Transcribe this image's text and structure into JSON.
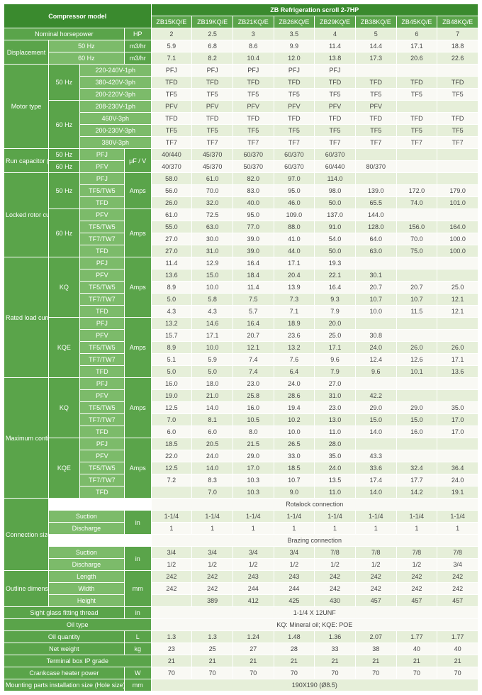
{
  "title": "ZB Refrigeration scroll 2-7HP",
  "compressor_label": "Compressor model",
  "models": [
    "ZB15KQ/E",
    "ZB19KQ/E",
    "ZB21KQ/E",
    "ZB26KQ/E",
    "ZB29KQ/E",
    "ZB38KQ/E",
    "ZB45KQ/E",
    "ZB48KQ/E"
  ],
  "col_lbl": {
    "lbl1": 60,
    "lbl2": 42,
    "lbl3": 60,
    "lbl4": 36,
    "data": 55
  },
  "section_labels": {
    "nom_hp": "Nominal horsepower",
    "hp": "HP",
    "disp": "Displacement",
    "m3hr": "m3/hr",
    "motor": "Motor type",
    "runcap": "Run capacitor (Sigle phase)",
    "uf": "μF / V",
    "lra": "Locked rotor current (LRA)",
    "rla": "Rated load current (RLA)",
    "mcc": "Maximum continuous current (MCC)",
    "conn": "Connection size",
    "suction": "Suction",
    "discharge": "Discharge",
    "outdim": "Outline dimension",
    "len": "Length",
    "wid": "Width",
    "hei": "Height",
    "sgf": "Sight glass fitting thread",
    "oiltype": "Oil type",
    "oilqty": "Oil quantity",
    "netwt": "Net weight",
    "ip": "Terminal box IP grade",
    "cchp": "Crankcase heater power",
    "mpis": "Mounting parts installation size (Hole size)",
    "rotalock": "Rotalock connection",
    "brazing": "Brazing connection",
    "amps": "Amps",
    "in": "in",
    "mm": "mm",
    "L": "L",
    "kg": "kg",
    "W": "W",
    "f50": "50 Hz",
    "f60": "60 Hz",
    "KQ": "KQ",
    "KQE": "KQE",
    "PFJ": "PFJ",
    "PFV": "PFV",
    "TF5TW5": "TF5/TW5",
    "TF7TW7": "TF7/TW7",
    "TFD": "TFD"
  },
  "motor_types": {
    "v220_240_1": "220-240V-1ph",
    "v380_420_3": "380-420V-3ph",
    "v200_220_3": "200-220V-3ph",
    "v208_230_1": "208-230V-1ph",
    "v460_3": "460V-3ph",
    "v200_230_3": "200-230V-3ph",
    "v380_3": "380V-3ph"
  },
  "nom_hp": [
    "2",
    "2.5",
    "3",
    "3.5",
    "4",
    "5",
    "6",
    "7"
  ],
  "disp50": [
    "5.9",
    "6.8",
    "8.6",
    "9.9",
    "11.4",
    "14.4",
    "17.1",
    "18.8"
  ],
  "disp60": [
    "7.1",
    "8.2",
    "10.4",
    "12.0",
    "13.8",
    "17.3",
    "20.6",
    "22.6"
  ],
  "motor": {
    "r1": [
      "PFJ",
      "PFJ",
      "PFJ",
      "PFJ",
      "PFJ",
      "",
      "",
      ""
    ],
    "r2": [
      "TFD",
      "TFD",
      "TFD",
      "TFD",
      "TFD",
      "TFD",
      "TFD",
      "TFD"
    ],
    "r3": [
      "TF5",
      "TF5",
      "TF5",
      "TF5",
      "TF5",
      "TF5",
      "TF5",
      "TF5"
    ],
    "r4": [
      "PFV",
      "PFV",
      "PFV",
      "PFV",
      "PFV",
      "PFV",
      "",
      ""
    ],
    "r5": [
      "TFD",
      "TFD",
      "TFD",
      "TFD",
      "TFD",
      "TFD",
      "TFD",
      "TFD"
    ],
    "r6": [
      "TF5",
      "TF5",
      "TF5",
      "TF5",
      "TF5",
      "TF5",
      "TF5",
      "TF5"
    ],
    "r7": [
      "TF7",
      "TF7",
      "TF7",
      "TF7",
      "TF7",
      "TF7",
      "TF7",
      "TF7"
    ]
  },
  "runcap": {
    "pfj": [
      "40/440",
      "45/370",
      "60/370",
      "60/370",
      "60/370",
      "",
      "",
      ""
    ],
    "pfv": [
      "40/370",
      "45/370",
      "50/370",
      "60/370",
      "60/440",
      "80/370",
      "",
      ""
    ]
  },
  "lra": {
    "f50_pfj": [
      "58.0",
      "61.0",
      "82.0",
      "97.0",
      "114.0",
      "",
      "",
      ""
    ],
    "f50_tf5": [
      "56.0",
      "70.0",
      "83.0",
      "95.0",
      "98.0",
      "139.0",
      "172.0",
      "179.0"
    ],
    "f50_tfd": [
      "26.0",
      "32.0",
      "40.0",
      "46.0",
      "50.0",
      "65.5",
      "74.0",
      "101.0"
    ],
    "f60_pfv": [
      "61.0",
      "72.5",
      "95.0",
      "109.0",
      "137.0",
      "144.0",
      "",
      ""
    ],
    "f60_tf5": [
      "55.0",
      "63.0",
      "77.0",
      "88.0",
      "91.0",
      "128.0",
      "156.0",
      "164.0"
    ],
    "f60_tf7": [
      "27.0",
      "30.0",
      "39.0",
      "41.0",
      "54.0",
      "64.0",
      "70.0",
      "100.0"
    ],
    "f60_tfd": [
      "27.0",
      "31.0",
      "39.0",
      "44.0",
      "50.0",
      "63.0",
      "75.0",
      "100.0"
    ]
  },
  "rla": {
    "kq_pfj": [
      "11.4",
      "12.9",
      "16.4",
      "17.1",
      "19.3",
      "",
      "",
      ""
    ],
    "kq_pfv": [
      "13.6",
      "15.0",
      "18.4",
      "20.4",
      "22.1",
      "30.1",
      "",
      ""
    ],
    "kq_tf5": [
      "8.9",
      "10.0",
      "11.4",
      "13.9",
      "16.4",
      "20.7",
      "20.7",
      "25.0"
    ],
    "kq_tf7": [
      "5.0",
      "5.8",
      "7.5",
      "7.3",
      "9.3",
      "10.7",
      "10.7",
      "12.1"
    ],
    "kq_tfd": [
      "4.3",
      "4.3",
      "5.7",
      "7.1",
      "7.9",
      "10.0",
      "11.5",
      "12.1"
    ],
    "kqe_pfj": [
      "13.2",
      "14.6",
      "16.4",
      "18.9",
      "20.0",
      "",
      "",
      ""
    ],
    "kqe_pfv": [
      "15.7",
      "17.1",
      "20.7",
      "23.6",
      "25.0",
      "30.8",
      "",
      ""
    ],
    "kqe_tf5": [
      "8.9",
      "10.0",
      "12.1",
      "13.2",
      "17.1",
      "24.0",
      "26.0",
      "26.0"
    ],
    "kqe_tf7": [
      "5.1",
      "5.9",
      "7.4",
      "7.6",
      "9.6",
      "12.4",
      "12.6",
      "17.1"
    ],
    "kqe_tfd": [
      "5.0",
      "5.0",
      "7.4",
      "6.4",
      "7.9",
      "9.6",
      "10.1",
      "13.6"
    ]
  },
  "mcc": {
    "kq_pfj": [
      "16.0",
      "18.0",
      "23.0",
      "24.0",
      "27.0",
      "",
      "",
      ""
    ],
    "kq_pfv": [
      "19.0",
      "21.0",
      "25.8",
      "28.6",
      "31.0",
      "42.2",
      "",
      ""
    ],
    "kq_tf5": [
      "12.5",
      "14.0",
      "16.0",
      "19.4",
      "23.0",
      "29.0",
      "29.0",
      "35.0"
    ],
    "kq_tf7": [
      "7.0",
      "8.1",
      "10.5",
      "10.2",
      "13.0",
      "15.0",
      "15.0",
      "17.0"
    ],
    "kq_tfd": [
      "6.0",
      "6.0",
      "8.0",
      "10.0",
      "11.0",
      "14.0",
      "16.0",
      "17.0"
    ],
    "kqe_pfj": [
      "18.5",
      "20.5",
      "21.5",
      "26.5",
      "28.0",
      "",
      "",
      ""
    ],
    "kqe_pfv": [
      "22.0",
      "24.0",
      "29.0",
      "33.0",
      "35.0",
      "43.3",
      "",
      ""
    ],
    "kqe_tf5": [
      "12.5",
      "14.0",
      "17.0",
      "18.5",
      "24.0",
      "33.6",
      "32.4",
      "36.4"
    ],
    "kqe_tf7": [
      "7.2",
      "8.3",
      "10.3",
      "10.7",
      "13.5",
      "17.4",
      "17.7",
      "24.0"
    ],
    "kqe_tfd": [
      "",
      "7.0",
      "10.3",
      "9.0",
      "11.0",
      "14.0",
      "14.2",
      "19.1"
    ]
  },
  "conn": {
    "rot_suc": [
      "1-1/4",
      "1-1/4",
      "1-1/4",
      "1-1/4",
      "1-1/4",
      "1-1/4",
      "1-1/4",
      "1-1/4"
    ],
    "rot_dis": [
      "1",
      "1",
      "1",
      "1",
      "1",
      "1",
      "1",
      "1"
    ],
    "brz_suc": [
      "3/4",
      "3/4",
      "3/4",
      "3/4",
      "7/8",
      "7/8",
      "7/8",
      "7/8"
    ],
    "brz_dis": [
      "1/2",
      "1/2",
      "1/2",
      "1/2",
      "1/2",
      "1/2",
      "1/2",
      "3/4"
    ]
  },
  "dim": {
    "len": [
      "242",
      "242",
      "243",
      "243",
      "242",
      "242",
      "242",
      "242"
    ],
    "wid": [
      "242",
      "242",
      "244",
      "244",
      "242",
      "242",
      "242",
      "242"
    ],
    "hei": [
      "",
      "389",
      "412",
      "425",
      "430",
      "457",
      "457",
      "457"
    ]
  },
  "sgf": "1-1/4 X 12UNF",
  "oiltype": "KQ: Mineral oil; KQE: POE",
  "oilqty": [
    "1.3",
    "1.3",
    "1.24",
    "1.48",
    "1.36",
    "2.07",
    "1.77",
    "1.77"
  ],
  "netwt": [
    "23",
    "25",
    "27",
    "28",
    "33",
    "38",
    "40",
    "40"
  ],
  "ip": [
    "21",
    "21",
    "21",
    "21",
    "21",
    "21",
    "21",
    "21"
  ],
  "cchp": [
    "70",
    "70",
    "70",
    "70",
    "70",
    "70",
    "70",
    "70"
  ],
  "mpis": "190X190 (Ø8.5)"
}
